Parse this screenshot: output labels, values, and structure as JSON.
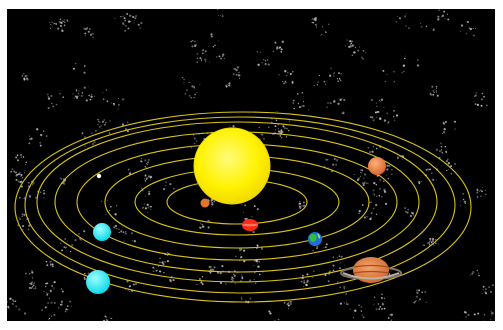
{
  "colors": {
    "background": "#000000",
    "orbit": "#d8c21c",
    "stars": "#c9c9c9"
  },
  "scene": {
    "sun": {
      "icon": "sun",
      "color": "#fff200"
    },
    "planets": [
      {
        "name": "mercury",
        "icon": "white-dot",
        "color": "#ffffff"
      },
      {
        "name": "venus",
        "icon": "orange-planet",
        "color": "#e2742f"
      },
      {
        "name": "earth",
        "icon": "blue-green-planet",
        "color": "#1f6fd8"
      },
      {
        "name": "mars",
        "icon": "red-planet",
        "color": "#ff2a16"
      },
      {
        "name": "jupiter",
        "icon": "orange-planet",
        "color": "#ef7e3d"
      },
      {
        "name": "saturn",
        "icon": "ringed-planet",
        "color": "#e27a3d"
      },
      {
        "name": "uranus",
        "icon": "cyan-planet",
        "color": "#19e6f2"
      },
      {
        "name": "neptune",
        "icon": "cyan-planet",
        "color": "#12e8f4"
      }
    ]
  }
}
